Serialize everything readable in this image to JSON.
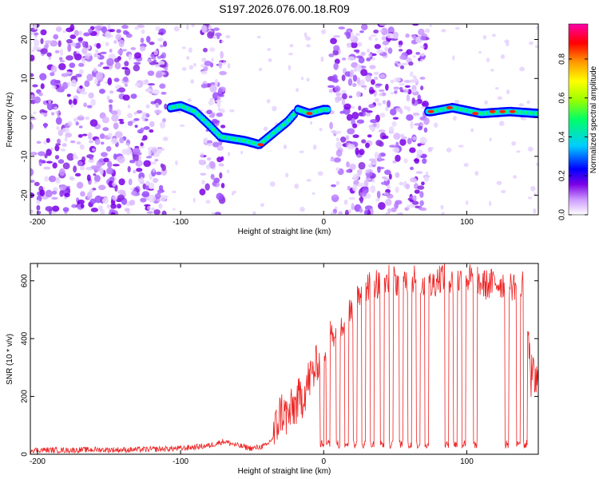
{
  "title": "S197.2026.076.00.18.R09",
  "chart_data": [
    {
      "type": "heatmap",
      "title": "",
      "xlabel": "Height of straight line (km)",
      "ylabel": "Frequency (Hz)",
      "xlim": [
        -205,
        150
      ],
      "ylim": [
        -25,
        24
      ],
      "xticks": [
        -200,
        -100,
        0,
        100
      ],
      "yticks": [
        -20,
        -10,
        0,
        10,
        20
      ],
      "colorbar": {
        "label": "Normalized spectral amplitude",
        "range": [
          0,
          0.98
        ],
        "ticks": [
          0.0,
          0.2,
          0.4,
          0.6,
          0.8
        ],
        "colormap": [
          "#ffffff",
          "#cc99ff",
          "#7a00e6",
          "#0000ff",
          "#00ccff",
          "#00ff66",
          "#99ff00",
          "#ffff00",
          "#ff9900",
          "#ff0000",
          "#ff00aa"
        ]
      },
      "signal_track": [
        {
          "x": -107,
          "y": 2.5
        },
        {
          "x": -100,
          "y": 3
        },
        {
          "x": -90,
          "y": 1.5
        },
        {
          "x": -80,
          "y": -2
        },
        {
          "x": -72,
          "y": -5
        },
        {
          "x": -55,
          "y": -6
        },
        {
          "x": -45,
          "y": -7
        },
        {
          "x": -35,
          "y": -4
        },
        {
          "x": -25,
          "y": -1
        },
        {
          "x": -18,
          "y": 2
        },
        {
          "x": -10,
          "y": 1
        },
        {
          "x": 0,
          "y": 2
        },
        {
          "x": 75,
          "y": 1.5
        },
        {
          "x": 90,
          "y": 2.5
        },
        {
          "x": 110,
          "y": 1
        },
        {
          "x": 130,
          "y": 1.5
        },
        {
          "x": 150,
          "y": 1
        }
      ],
      "noise_regions": [
        [
          -205,
          -110
        ],
        [
          -85,
          -70
        ],
        [
          5,
          72
        ]
      ]
    },
    {
      "type": "line",
      "title": "",
      "xlabel": "Height of straight line (km)",
      "ylabel": "SNR (10 * v/v)",
      "xlim": [
        -205,
        150
      ],
      "ylim": [
        0,
        660
      ],
      "xticks": [
        -200,
        -100,
        0,
        100
      ],
      "yticks": [
        0,
        200,
        400,
        600
      ],
      "series": [
        {
          "name": "SNR",
          "color": "#ee2222",
          "x": [
            -205,
            -180,
            -160,
            -140,
            -120,
            -100,
            -80,
            -70,
            -60,
            -50,
            -45,
            -40,
            -35,
            -30,
            -25,
            -20,
            -15,
            -10,
            -5,
            0,
            5,
            10,
            15,
            20,
            25,
            30,
            35,
            40,
            45,
            50,
            55,
            60,
            65,
            70,
            75,
            80,
            85,
            90,
            95,
            100,
            105,
            110,
            115,
            120,
            125,
            130,
            135,
            140,
            145,
            150
          ],
          "values": [
            15,
            14,
            16,
            15,
            17,
            20,
            30,
            45,
            30,
            20,
            25,
            30,
            60,
            150,
            130,
            170,
            200,
            260,
            300,
            360,
            420,
            430,
            470,
            500,
            560,
            580,
            600,
            580,
            610,
            600,
            590,
            620,
            600,
            590,
            580,
            610,
            620,
            590,
            600,
            610,
            600,
            590,
            585,
            595,
            590,
            580,
            590,
            600,
            270,
            240
          ]
        }
      ],
      "dropouts_x": [
        -1,
        3,
        10,
        16,
        22,
        28,
        34,
        41,
        47,
        54,
        60,
        66,
        72,
        86,
        92,
        98,
        106,
        128,
        136,
        141
      ]
    }
  ]
}
